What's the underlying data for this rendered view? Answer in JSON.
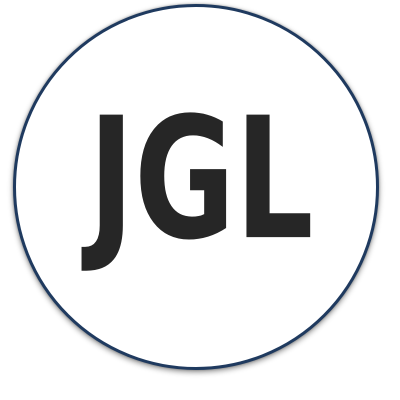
{
  "logo": {
    "text": "JGL",
    "ring_color": "#1f3a5f",
    "text_color": "#262626",
    "background": "#ffffff"
  }
}
